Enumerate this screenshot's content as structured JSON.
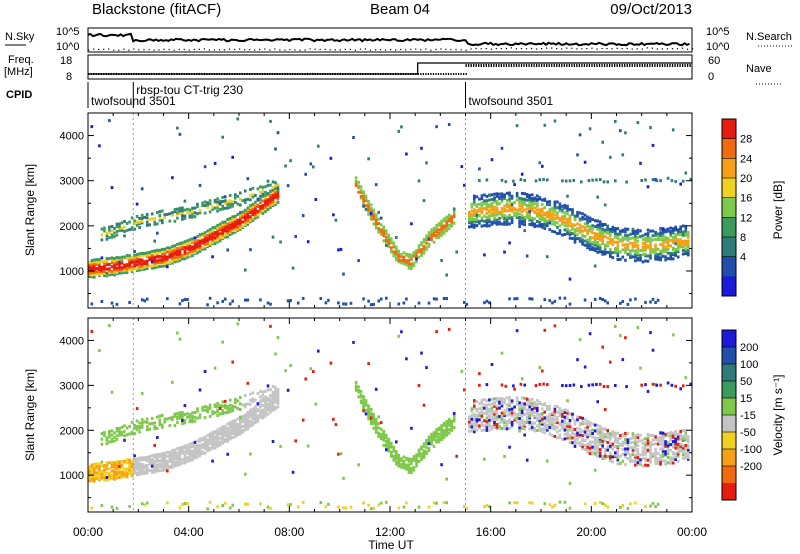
{
  "header": {
    "station": "Blackstone (fitACF)",
    "beam": "Beam 04",
    "date": "09/Oct/2013"
  },
  "left_labels": {
    "nsky": "N.Sky",
    "freq": "Freq.",
    "freq_unit": "[MHz]",
    "cpid": "CPID"
  },
  "right_labels": {
    "nsearch": "N.Search",
    "nave": "Nave"
  },
  "noise_panel": {
    "left_ticks": [
      "10^5",
      "10^0"
    ],
    "right_ticks": [
      "10^5",
      "10^0"
    ]
  },
  "freq_panel": {
    "left_ticks": [
      "18",
      "8"
    ],
    "right_ticks": [
      "60",
      "0"
    ]
  },
  "cpid_segments": [
    {
      "label": "twofsound 3501",
      "start": 0,
      "end": 1.8
    },
    {
      "label": "rbsp-tou CT-trig 230",
      "start": 1.8,
      "end": 15
    },
    {
      "label": "twofsound 3501",
      "start": 15,
      "end": 24
    }
  ],
  "colors": {
    "power": [
      "#1a1ad8",
      "#1f4fa8",
      "#2f7a7a",
      "#3c9a5c",
      "#7ec84a",
      "#f0d020",
      "#f5a016",
      "#f26a10",
      "#e61c0c"
    ],
    "velocity": [
      "#1a1ad8",
      "#1f4fa8",
      "#2f7a7a",
      "#3c9a5c",
      "#7ec84a",
      "#c4c4c4",
      "#f0d020",
      "#f5a016",
      "#f26a10",
      "#e61c0c"
    ],
    "ground_scatter": "#b0b0b0"
  },
  "chart_data": [
    {
      "type": "heatmap",
      "panel": "power",
      "ylabel": "Slant Range [km]",
      "ylim": [
        180,
        4500
      ],
      "yticks": [
        1000,
        2000,
        3000,
        4000
      ],
      "xlim": [
        0,
        24
      ],
      "colorbar": {
        "label": "Power [dB]",
        "ticks": [
          28,
          24,
          20,
          16,
          12,
          8,
          4
        ],
        "range": [
          0,
          32
        ]
      },
      "features": [
        {
          "name": "main band",
          "t": [
            0,
            1,
            2,
            3,
            4,
            5,
            6,
            7,
            7.5
          ],
          "range_km": [
            1050,
            1100,
            1200,
            1300,
            1500,
            1800,
            2100,
            2500,
            2700
          ],
          "power_db": 28
        },
        {
          "name": "upper band",
          "t": [
            0.5,
            2,
            4,
            6,
            7.5
          ],
          "range_km": [
            1800,
            2100,
            2300,
            2600,
            2900
          ],
          "power_db": 10
        },
        {
          "name": "dip",
          "t": [
            10.5,
            11.5,
            12.3,
            12.8,
            13.5,
            14.5
          ],
          "range_km": [
            3000,
            2000,
            1300,
            1200,
            1700,
            2200
          ],
          "power_db": 24
        },
        {
          "name": "evening arc",
          "t": [
            15,
            16,
            17,
            18,
            19,
            20,
            21,
            22,
            23,
            24
          ],
          "range_km": [
            2300,
            2350,
            2400,
            2300,
            2100,
            1800,
            1600,
            1550,
            1600,
            1700
          ],
          "power_db": 18
        }
      ]
    },
    {
      "type": "heatmap",
      "panel": "velocity",
      "ylabel": "Slant Range [km]",
      "xlabel": "Time UT",
      "ylim": [
        180,
        4500
      ],
      "yticks": [
        1000,
        2000,
        3000,
        4000
      ],
      "xlim": [
        0,
        24
      ],
      "xticks": [
        "00:00",
        "04:00",
        "08:00",
        "12:00",
        "16:00",
        "20:00",
        "00:00"
      ],
      "colorbar": {
        "label": "Velocity [m s⁻¹]",
        "ticks": [
          200,
          100,
          50,
          15,
          -15,
          -50,
          -100,
          -200
        ]
      }
    }
  ]
}
